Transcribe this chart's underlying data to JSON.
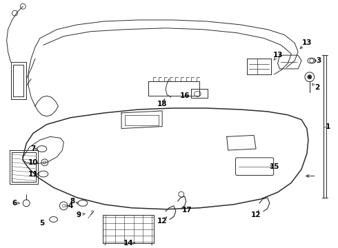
{
  "bg_color": "#ffffff",
  "line_color": "#2a2a2a",
  "lw_main": 1.1,
  "lw_thin": 0.7,
  "lw_hair": 0.5
}
